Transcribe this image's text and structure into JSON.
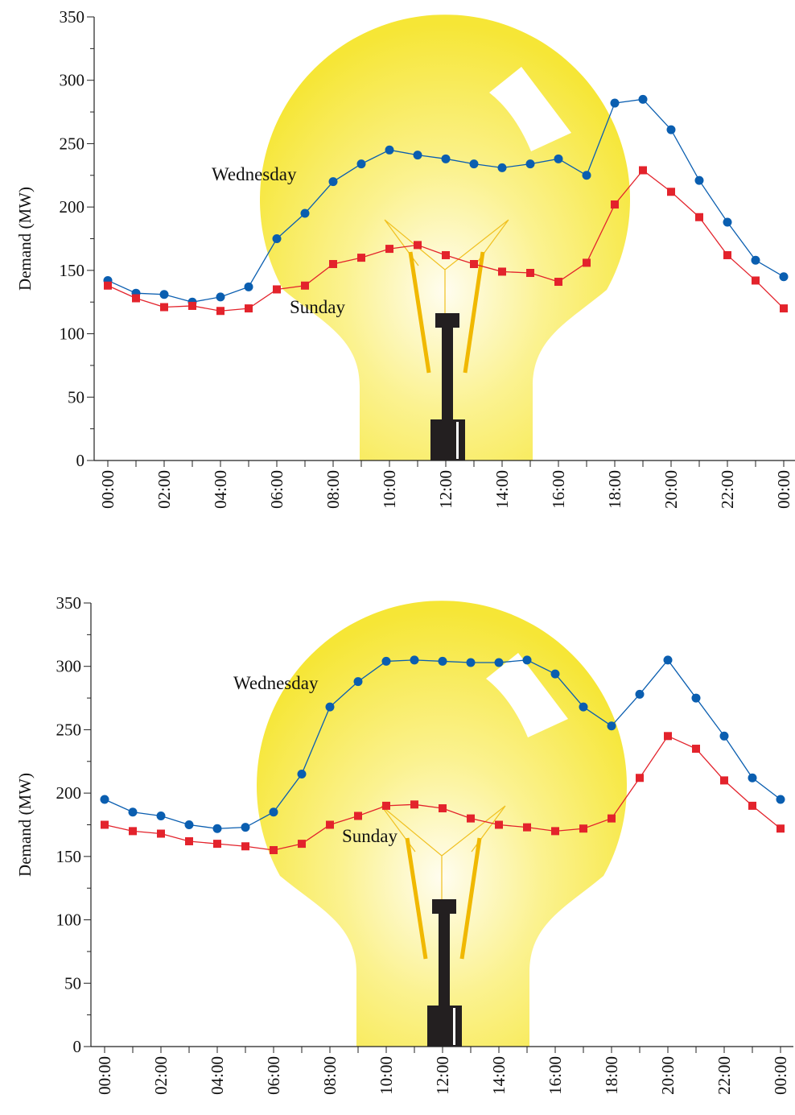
{
  "chart_data": [
    {
      "type": "line",
      "y_label": "Demand (MW)",
      "categories": [
        "00:00",
        null,
        "02:00",
        null,
        "04:00",
        null,
        "06:00",
        null,
        "08:00",
        null,
        "10:00",
        null,
        "12:00",
        null,
        "14:00",
        null,
        "16:00",
        null,
        "18:00",
        null,
        "20:00",
        null,
        "22:00",
        null,
        "00:00"
      ],
      "series": [
        {
          "name": "Wednesday",
          "color": "#0a5eb0",
          "marker": "circle",
          "values": [
            142,
            132,
            131,
            125,
            129,
            137,
            175,
            195,
            220,
            234,
            245,
            241,
            238,
            234,
            231,
            234,
            238,
            225,
            282,
            285,
            261,
            221,
            188,
            158,
            145
          ]
        },
        {
          "name": "Sunday",
          "color": "#e3232c",
          "marker": "square",
          "values": [
            138,
            128,
            121,
            122,
            118,
            120,
            135,
            138,
            155,
            160,
            167,
            170,
            162,
            155,
            149,
            148,
            141,
            156,
            202,
            229,
            212,
            192,
            162,
            142,
            120
          ]
        }
      ],
      "ylim": [
        0,
        350
      ],
      "yticks": [
        0,
        50,
        100,
        150,
        200,
        250,
        300,
        350
      ]
    },
    {
      "type": "line",
      "y_label": "Demand (MW)",
      "categories": [
        "00:00",
        null,
        "02:00",
        null,
        "04:00",
        null,
        "06:00",
        null,
        "08:00",
        null,
        "10:00",
        null,
        "12:00",
        null,
        "14:00",
        null,
        "16:00",
        null,
        "18:00",
        null,
        "20:00",
        null,
        "22:00",
        null,
        "00:00"
      ],
      "series": [
        {
          "name": "Wednesday",
          "color": "#0a5eb0",
          "marker": "circle",
          "values": [
            195,
            185,
            182,
            175,
            172,
            173,
            185,
            215,
            268,
            288,
            304,
            305,
            304,
            303,
            303,
            305,
            294,
            268,
            253,
            278,
            305,
            275,
            245,
            212,
            195
          ]
        },
        {
          "name": "Sunday",
          "color": "#e3232c",
          "marker": "square",
          "values": [
            175,
            170,
            168,
            162,
            160,
            158,
            155,
            160,
            175,
            182,
            190,
            191,
            188,
            180,
            175,
            173,
            170,
            172,
            180,
            212,
            245,
            235,
            210,
            190,
            172
          ]
        }
      ],
      "ylim": [
        0,
        350
      ],
      "yticks": [
        0,
        50,
        100,
        150,
        200,
        250,
        300,
        350
      ]
    }
  ]
}
